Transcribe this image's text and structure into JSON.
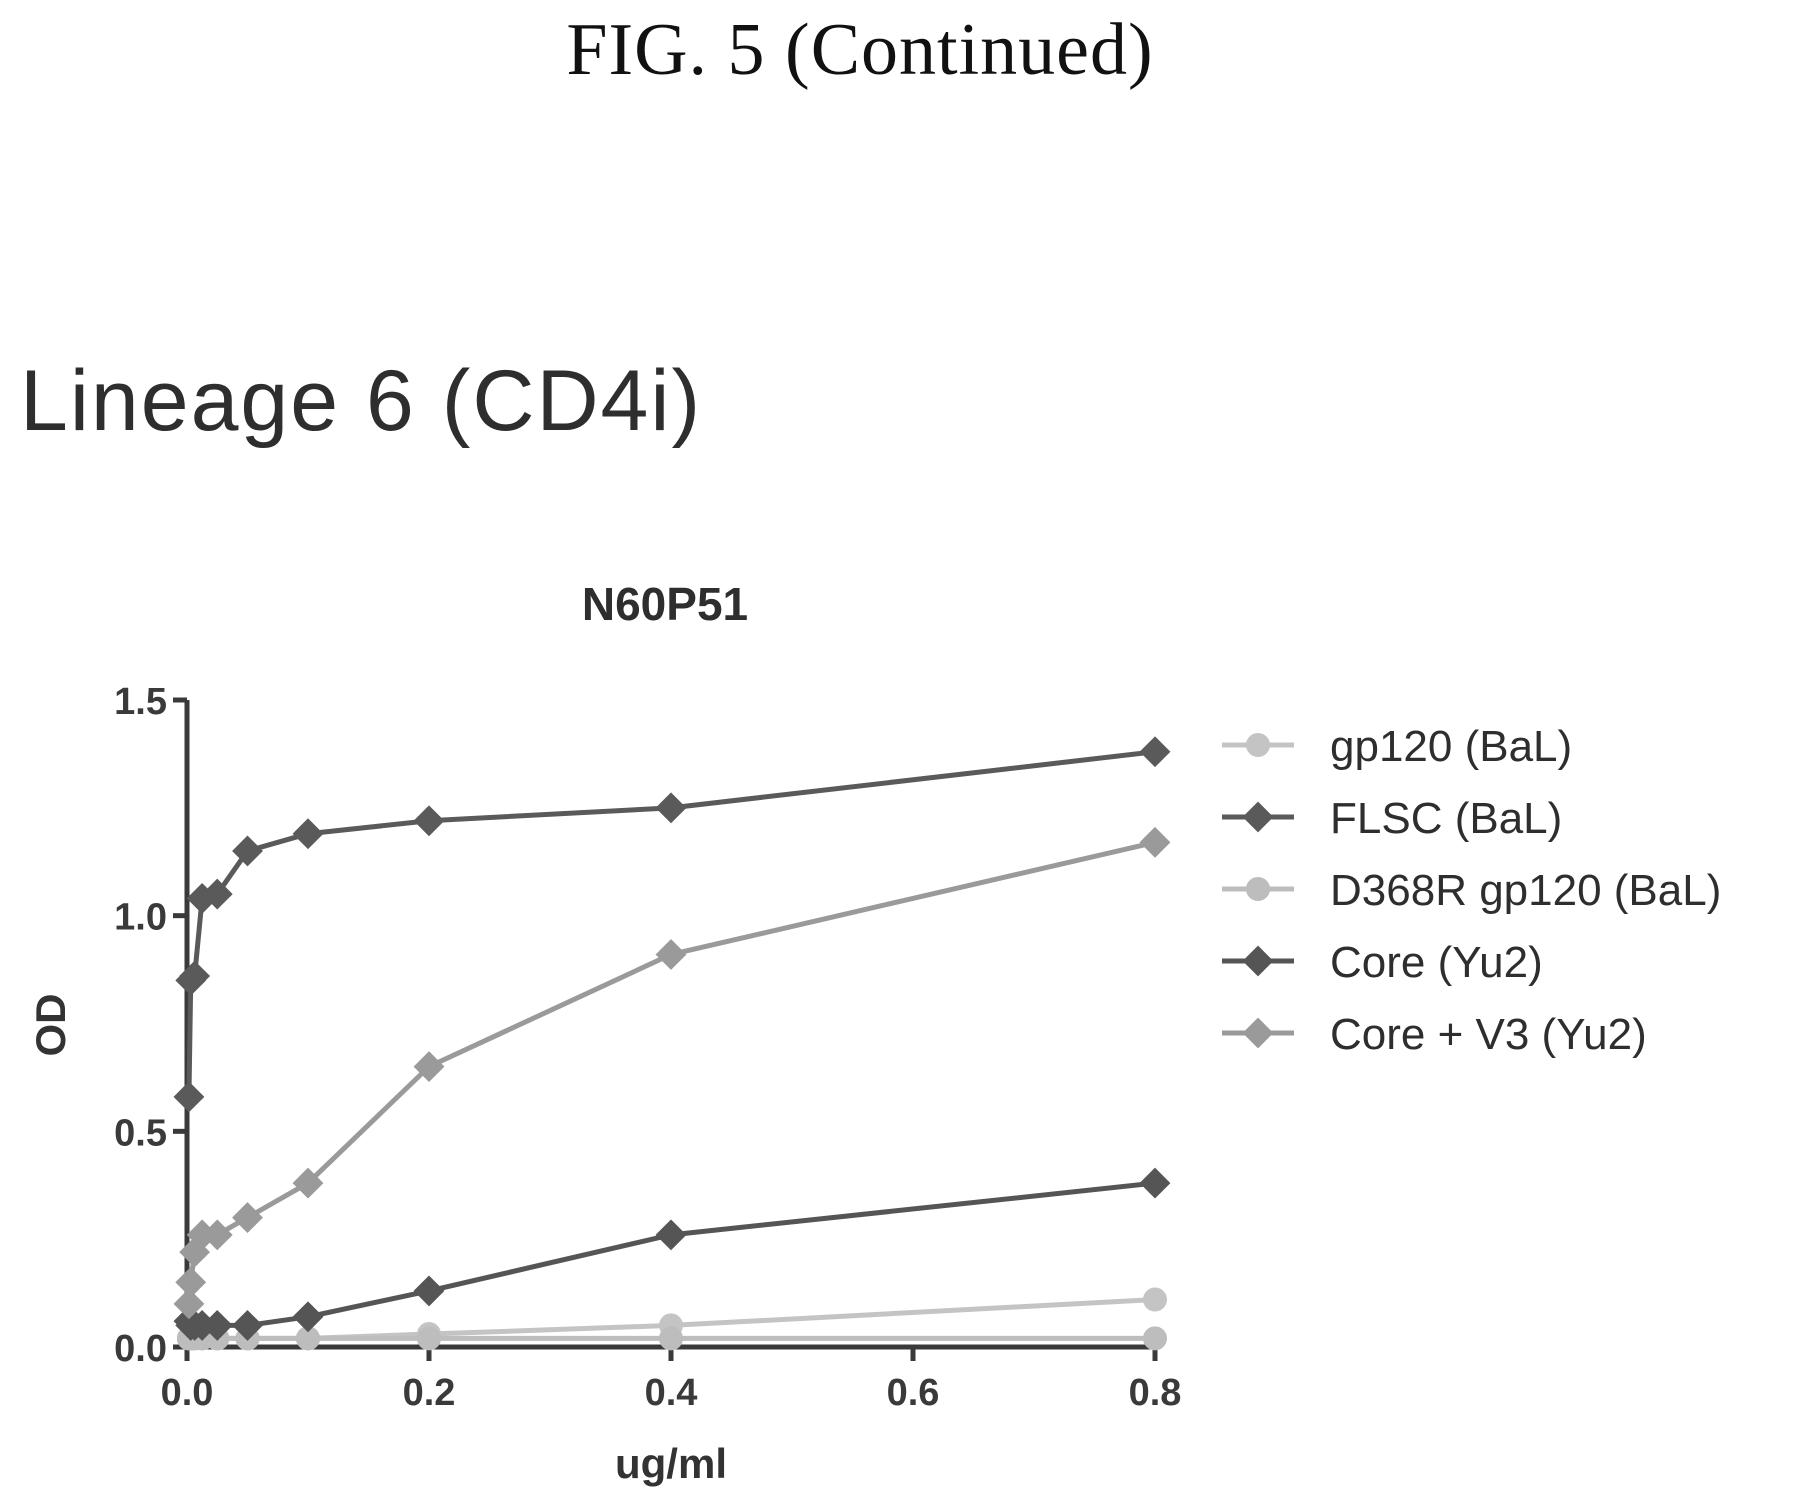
{
  "figure_caption": "FIG. 5 (Continued)",
  "panel_title": "Lineage 6 (CD4i)",
  "chart_data": {
    "type": "line",
    "title": "N60P51",
    "xlabel": "ug/ml",
    "ylabel": "OD",
    "xlim": [
      0.0,
      0.8
    ],
    "ylim": [
      0.0,
      1.5
    ],
    "x_ticks": [
      "0.0",
      "0.2",
      "0.4",
      "0.6",
      "0.8"
    ],
    "y_ticks": [
      "0.0",
      "0.5",
      "1.0",
      "1.5"
    ],
    "grid": false,
    "legend_position": "right",
    "x": [
      0.0016,
      0.0031,
      0.0063,
      0.0125,
      0.025,
      0.05,
      0.1,
      0.2,
      0.4,
      0.8
    ],
    "series": [
      {
        "name": "gp120 (BaL)",
        "color": "#c4c4c4",
        "marker": "circle",
        "values": [
          0.02,
          0.02,
          0.02,
          0.02,
          0.02,
          0.02,
          0.02,
          0.03,
          0.05,
          0.11
        ]
      },
      {
        "name": "FLSC (BaL)",
        "color": "#5a5a5a",
        "marker": "diamond",
        "values": [
          0.58,
          0.85,
          0.86,
          1.04,
          1.05,
          1.15,
          1.19,
          1.22,
          1.25,
          1.38
        ]
      },
      {
        "name": "D368R gp120 (BaL)",
        "color": "#bdbdbd",
        "marker": "circle",
        "values": [
          0.02,
          0.02,
          0.02,
          0.02,
          0.02,
          0.02,
          0.02,
          0.02,
          0.02,
          0.02
        ]
      },
      {
        "name": "Core (Yu2)",
        "color": "#555555",
        "marker": "diamond",
        "values": [
          0.06,
          0.05,
          0.05,
          0.05,
          0.05,
          0.05,
          0.07,
          0.13,
          0.26,
          0.38
        ]
      },
      {
        "name": "Core + V3 (Yu2)",
        "color": "#9a9a9a",
        "marker": "diamond",
        "values": [
          0.1,
          0.15,
          0.22,
          0.26,
          0.26,
          0.3,
          0.38,
          0.65,
          0.91,
          1.17
        ]
      }
    ]
  }
}
